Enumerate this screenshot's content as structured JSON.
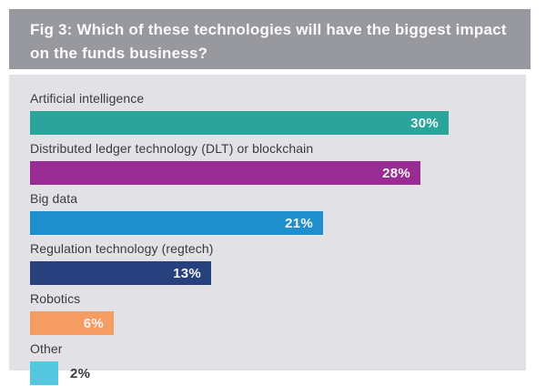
{
  "title": {
    "text": "Fig 3: Which of these technologies will have the biggest impact on the funds business?"
  },
  "colors": {
    "title_bg": "#98989f",
    "title_text": "#fbfbfb",
    "panel_bg": "#e2e2e6",
    "category_text": "#3b3b3d",
    "value_text_inside": "#f4f4f4"
  },
  "chart_data": {
    "type": "bar",
    "orientation": "horizontal",
    "title": "Fig 3: Which of these technologies will have the biggest impact on the funds business?",
    "categories": [
      "Artificial intelligence",
      "Distributed ledger technology (DLT) or blockchain",
      "Big data",
      "Regulation technology (regtech)",
      "Robotics",
      "Other"
    ],
    "values": [
      30,
      28,
      21,
      13,
      6,
      2
    ],
    "value_labels": [
      "30%",
      "28%",
      "21%",
      "13%",
      "6%",
      "2%"
    ],
    "bar_colors": [
      "#2ba49b",
      "#982c93",
      "#1e8ecd",
      "#27417e",
      "#f59c63",
      "#56c7e1"
    ],
    "value_label_inside": [
      true,
      true,
      true,
      true,
      true,
      false
    ],
    "xlim": [
      0,
      30
    ],
    "grid": false,
    "legend": false
  }
}
